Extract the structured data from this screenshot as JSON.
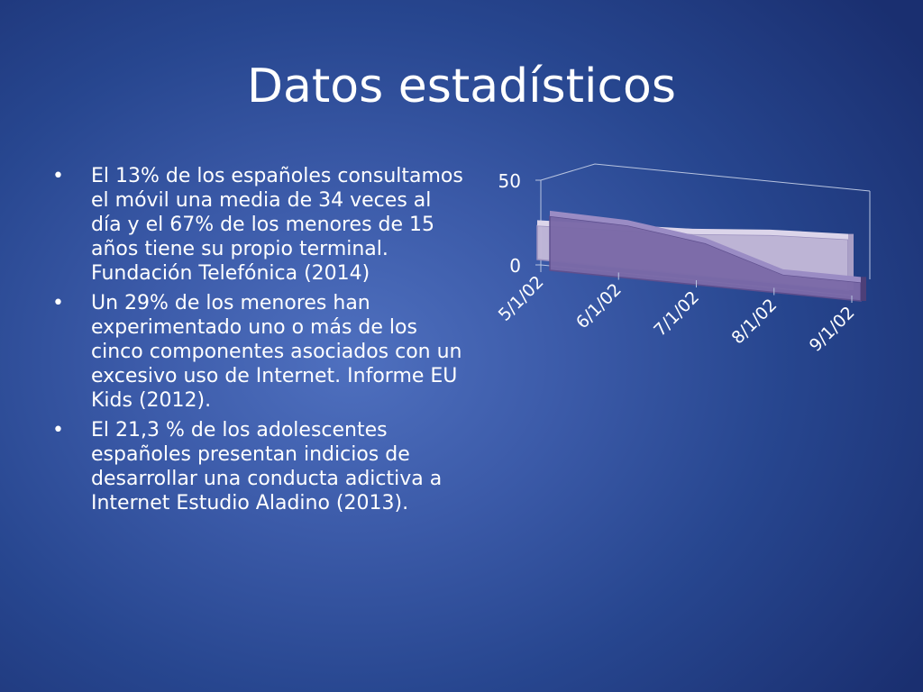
{
  "slide": {
    "title": "Datos estadísticos",
    "bullets": [
      "El 13% de los españoles consultamos el móvil una media de 34 veces al día y el 67% de los menores de 15 años tiene su propio terminal. Fundación Telefónica (2014)",
      "Un 29% de los menores han experimentado uno o más de los cinco componentes asociados con un excesivo uso de Internet. Informe EU Kids (2012).",
      "El 21,3 % de los adolescentes españoles presentan indicios de desarrollar una conducta adictiva a Internet Estudio Aladino (2013)."
    ],
    "bullet_symbol": "•"
  },
  "chart_data": {
    "type": "area",
    "categories": [
      "5/1/02",
      "6/1/02",
      "7/1/02",
      "8/1/02",
      "9/1/02"
    ],
    "series": [
      {
        "values": [
          32,
          31,
          25,
          11,
          11
        ],
        "color": "#7b6aa8"
      },
      {
        "values": [
          20,
          22,
          24,
          28,
          30
        ],
        "color": "#c2b8d8"
      }
    ],
    "yticks": [
      "0",
      "50"
    ],
    "ylim": [
      0,
      50
    ],
    "projection": "3d",
    "grid": false,
    "legend": "none"
  }
}
